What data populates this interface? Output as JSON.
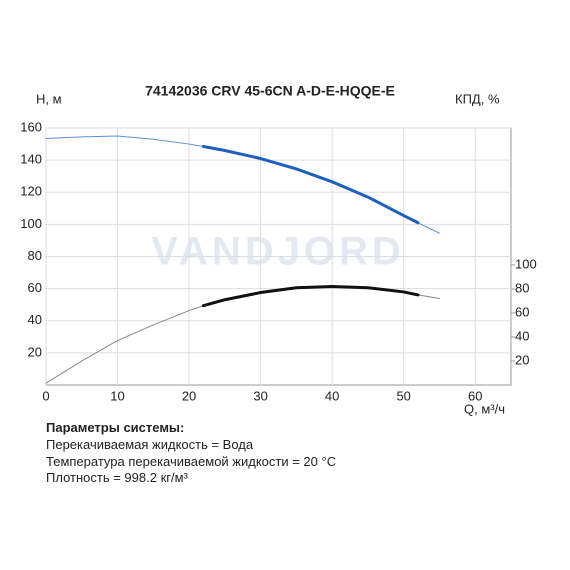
{
  "chart_data": {
    "type": "line",
    "title": "74142036 CRV 45-6CN A-D-E-HQQE-E",
    "y_label": "H, м",
    "y2_label": "КПД, %",
    "x_label": "Q, м³/ч",
    "watermark": "VANDJORD",
    "xlim": [
      0,
      65
    ],
    "xticks": [
      0,
      10,
      20,
      30,
      40,
      50,
      60
    ],
    "ylim": [
      0,
      160
    ],
    "yticks": [
      20,
      40,
      60,
      80,
      100,
      120,
      140,
      160
    ],
    "y2lim": [
      0,
      214
    ],
    "y2ticks": [
      20,
      40,
      60,
      80,
      100
    ],
    "grid": true,
    "series": [
      {
        "color": "#5b8fd6",
        "width": 1,
        "x": [
          0,
          5,
          10,
          15,
          20,
          22,
          25,
          30,
          35,
          40,
          45,
          50,
          52,
          55
        ],
        "values": [
          153.5,
          154.5,
          155,
          153,
          150,
          148.5,
          146,
          141,
          134.5,
          126.5,
          117,
          105.5,
          101,
          94.5
        ]
      },
      {
        "color": "#1f5fbf",
        "width": 3,
        "x": [
          22,
          25,
          30,
          35,
          40,
          45,
          50,
          52
        ],
        "values": [
          148.5,
          146,
          141,
          134.5,
          126.5,
          117,
          105.5,
          101
        ]
      },
      {
        "color": "#888888",
        "width": 1,
        "axis": "y2",
        "x": [
          0,
          5,
          10,
          15,
          20,
          22,
          25,
          30,
          35,
          40,
          45,
          50,
          52,
          55
        ],
        "values": [
          1.5,
          20,
          37,
          50,
          62,
          66,
          71,
          77,
          81,
          82,
          81,
          77.5,
          75,
          72
        ]
      },
      {
        "color": "#111111",
        "width": 3,
        "axis": "y2",
        "x": [
          22,
          25,
          30,
          35,
          40,
          45,
          50,
          52
        ],
        "values": [
          66,
          71,
          77,
          81,
          82,
          81,
          77.5,
          75
        ]
      }
    ]
  },
  "parameters": {
    "title": "Параметры системы:",
    "lines": [
      "Перекачиваемая жидкость = Вода",
      "Температура перекачиваемой жидкости = 20 °C",
      "Плотность = 998.2 кг/м³"
    ]
  }
}
